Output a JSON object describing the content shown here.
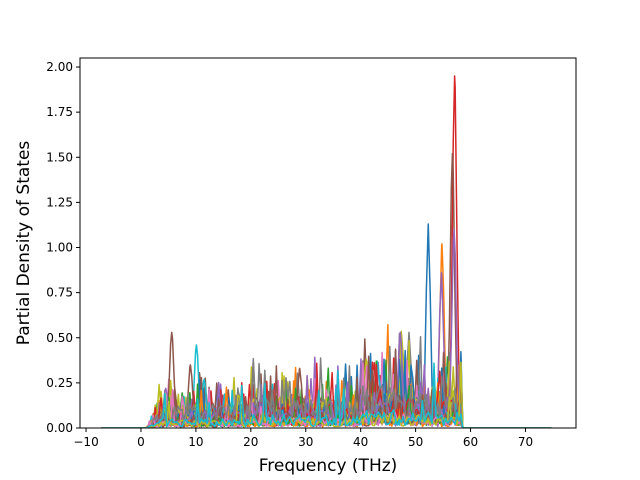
{
  "chart_data": {
    "type": "line",
    "title": "",
    "xlabel": "Frequency (THz)",
    "ylabel": "Partial Density of States",
    "xlim": [
      -11.1,
      79.2
    ],
    "ylim": [
      0,
      2.05
    ],
    "xticks": [
      -10,
      0,
      10,
      20,
      30,
      40,
      50,
      60,
      70
    ],
    "yticks": [
      0.0,
      0.25,
      0.5,
      0.75,
      1.0,
      1.25,
      1.5,
      1.75,
      2.0
    ],
    "xtick_labels": [
      "−10",
      "0",
      "10",
      "20",
      "30",
      "40",
      "50",
      "60",
      "70"
    ],
    "ytick_labels": [
      "0.00",
      "0.25",
      "0.50",
      "0.75",
      "1.00",
      "1.25",
      "1.50",
      "1.75",
      "2.00"
    ],
    "grid": false,
    "legend": "none",
    "x_range": [
      -7.2,
      74.8
    ],
    "colors": [
      "#1f77b4",
      "#ff7f0e",
      "#2ca02c",
      "#d62728",
      "#9467bd",
      "#8c564b",
      "#e377c2",
      "#7f7f7f",
      "#bcbd22",
      "#17becf"
    ],
    "notable_peaks": [
      {
        "x": 57.1,
        "y": 1.95,
        "color": "#d62728"
      },
      {
        "x": 56.7,
        "y": 1.52,
        "color": "#8c564b"
      },
      {
        "x": 52.3,
        "y": 1.13,
        "color": "#1f77b4"
      },
      {
        "x": 57.0,
        "y": 1.1,
        "color": "#9467bd"
      },
      {
        "x": 54.8,
        "y": 1.02,
        "color": "#ff7f0e"
      },
      {
        "x": 54.7,
        "y": 0.86,
        "color": "#9467bd"
      },
      {
        "x": 5.6,
        "y": 0.53,
        "color": "#8c564b"
      },
      {
        "x": 47.2,
        "y": 0.53,
        "color": "#9467bd"
      },
      {
        "x": 48.8,
        "y": 0.53,
        "color": "#7f7f7f"
      },
      {
        "x": 10.1,
        "y": 0.46,
        "color": "#17becf"
      },
      {
        "x": 9.0,
        "y": 0.35,
        "color": "#8c564b"
      },
      {
        "x": 28.9,
        "y": 0.33,
        "color": "#8c564b"
      },
      {
        "x": 41.0,
        "y": 0.38,
        "color": "#bcbd22"
      },
      {
        "x": 43.0,
        "y": 0.37,
        "color": "#17becf"
      },
      {
        "x": 11.5,
        "y": 0.27,
        "color": "#17becf"
      },
      {
        "x": 4.5,
        "y": 0.22,
        "color": "#9467bd"
      }
    ]
  }
}
